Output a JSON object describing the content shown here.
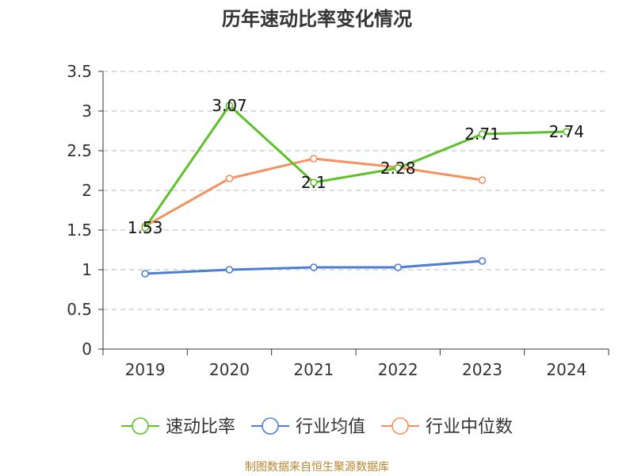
{
  "chart_data": {
    "type": "line",
    "title": "历年速动比率变化情况",
    "categories": [
      "2019",
      "2020",
      "2021",
      "2022",
      "2023",
      "2024"
    ],
    "series": [
      {
        "name": "速动比率",
        "color": "#5cc12b",
        "values": [
          1.53,
          3.07,
          2.1,
          2.28,
          2.71,
          2.74
        ],
        "show_labels": true
      },
      {
        "name": "行业均值",
        "color": "#4e7dd8",
        "values": [
          0.95,
          1.0,
          1.03,
          1.03,
          1.11,
          null
        ],
        "show_labels": false
      },
      {
        "name": "行业中位数",
        "color": "#f5915e",
        "values": [
          1.55,
          2.15,
          2.4,
          2.29,
          2.13,
          null
        ],
        "show_labels": false
      }
    ],
    "data_labels": [
      "1.53",
      "3.07",
      "2.1",
      "2.28",
      "2.71",
      "2.74"
    ],
    "ylim": [
      0,
      3.5
    ],
    "yticks": [
      0,
      0.5,
      1,
      1.5,
      2,
      2.5,
      3,
      3.5
    ],
    "ytick_labels": [
      "0",
      "0.5",
      "1",
      "1.5",
      "2",
      "2.5",
      "3",
      "3.5"
    ],
    "grid": true,
    "legend_position": "bottom",
    "xlabel": "",
    "ylabel": ""
  },
  "source_note": "制图数据来自恒生聚源数据库"
}
